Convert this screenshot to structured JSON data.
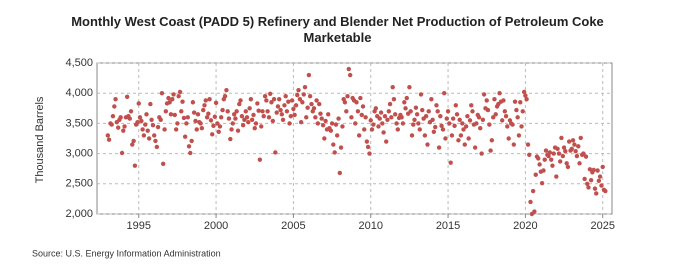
{
  "chart_data": {
    "type": "scatter",
    "title": "Monthly West Coast (PADD 5) Refinery and Blender Net Production of Petroleum Coke Marketable",
    "y_label": "Thousand Barrels",
    "source": "Source: U.S. Energy Information Administration",
    "color": "#c0504d",
    "grid": true,
    "xlim": [
      1992.3,
      2025.6
    ],
    "xticks": [
      1995,
      2000,
      2005,
      2010,
      2015,
      2020,
      2025
    ],
    "ylim": [
      2000,
      4500
    ],
    "yticks": [
      {
        "value": 2000,
        "label": "2,000"
      },
      {
        "value": 2500,
        "label": "2,500"
      },
      {
        "value": 3000,
        "label": "3,000"
      },
      {
        "value": 3500,
        "label": "3,500"
      },
      {
        "value": 4000,
        "label": "4,000"
      },
      {
        "value": 4500,
        "label": "4,500"
      }
    ],
    "x": [
      1993.0,
      1993.08,
      1993.17,
      1993.25,
      1993.33,
      1993.42,
      1993.5,
      1993.58,
      1993.67,
      1993.75,
      1993.83,
      1993.92,
      1994.0,
      1994.08,
      1994.17,
      1994.25,
      1994.33,
      1994.42,
      1994.5,
      1994.58,
      1994.67,
      1994.75,
      1994.83,
      1994.92,
      1995.0,
      1995.08,
      1995.17,
      1995.25,
      1995.33,
      1995.42,
      1995.5,
      1995.58,
      1995.67,
      1995.75,
      1995.83,
      1995.92,
      1996.0,
      1996.08,
      1996.17,
      1996.25,
      1996.33,
      1996.42,
      1996.5,
      1996.58,
      1996.67,
      1996.75,
      1996.83,
      1996.92,
      1997.0,
      1997.08,
      1997.17,
      1997.25,
      1997.33,
      1997.42,
      1997.5,
      1997.58,
      1997.67,
      1997.75,
      1997.83,
      1997.92,
      1998.0,
      1998.08,
      1998.17,
      1998.25,
      1998.33,
      1998.42,
      1998.5,
      1998.58,
      1998.67,
      1998.75,
      1998.83,
      1998.92,
      1999.0,
      1999.08,
      1999.17,
      1999.25,
      1999.33,
      1999.42,
      1999.5,
      1999.58,
      1999.67,
      1999.75,
      1999.83,
      1999.92,
      2000.0,
      2000.08,
      2000.17,
      2000.25,
      2000.33,
      2000.42,
      2000.5,
      2000.58,
      2000.67,
      2000.75,
      2000.83,
      2000.92,
      2001.0,
      2001.08,
      2001.17,
      2001.25,
      2001.33,
      2001.42,
      2001.5,
      2001.58,
      2001.67,
      2001.75,
      2001.83,
      2001.92,
      2002.0,
      2002.08,
      2002.17,
      2002.25,
      2002.33,
      2002.42,
      2002.5,
      2002.58,
      2002.67,
      2002.75,
      2002.83,
      2002.92,
      2003.0,
      2003.08,
      2003.17,
      2003.25,
      2003.33,
      2003.42,
      2003.5,
      2003.58,
      2003.67,
      2003.75,
      2003.83,
      2003.92,
      2004.0,
      2004.08,
      2004.17,
      2004.25,
      2004.33,
      2004.42,
      2004.5,
      2004.58,
      2004.67,
      2004.75,
      2004.83,
      2004.92,
      2005.0,
      2005.08,
      2005.17,
      2005.25,
      2005.33,
      2005.42,
      2005.5,
      2005.58,
      2005.67,
      2005.75,
      2005.83,
      2005.92,
      2006.0,
      2006.08,
      2006.17,
      2006.25,
      2006.33,
      2006.42,
      2006.5,
      2006.58,
      2006.67,
      2006.75,
      2006.83,
      2006.92,
      2007.0,
      2007.08,
      2007.17,
      2007.25,
      2007.33,
      2007.42,
      2007.5,
      2007.58,
      2007.67,
      2007.75,
      2007.83,
      2007.92,
      2008.0,
      2008.08,
      2008.17,
      2008.25,
      2008.33,
      2008.42,
      2008.5,
      2008.58,
      2008.67,
      2008.75,
      2008.83,
      2008.92,
      2009.0,
      2009.08,
      2009.17,
      2009.25,
      2009.33,
      2009.42,
      2009.5,
      2009.58,
      2009.67,
      2009.75,
      2009.83,
      2009.92,
      2010.0,
      2010.08,
      2010.17,
      2010.25,
      2010.33,
      2010.42,
      2010.5,
      2010.58,
      2010.67,
      2010.75,
      2010.83,
      2010.92,
      2011.0,
      2011.08,
      2011.17,
      2011.25,
      2011.33,
      2011.42,
      2011.5,
      2011.58,
      2011.67,
      2011.75,
      2011.83,
      2011.92,
      2012.0,
      2012.08,
      2012.17,
      2012.25,
      2012.33,
      2012.42,
      2012.5,
      2012.58,
      2012.67,
      2012.75,
      2012.83,
      2012.92,
      2013.0,
      2013.08,
      2013.17,
      2013.25,
      2013.33,
      2013.42,
      2013.5,
      2013.58,
      2013.67,
      2013.75,
      2013.83,
      2013.92,
      2014.0,
      2014.08,
      2014.17,
      2014.25,
      2014.33,
      2014.42,
      2014.5,
      2014.58,
      2014.67,
      2014.75,
      2014.83,
      2014.92,
      2015.0,
      2015.08,
      2015.17,
      2015.25,
      2015.33,
      2015.42,
      2015.5,
      2015.58,
      2015.67,
      2015.75,
      2015.83,
      2015.92,
      2016.0,
      2016.08,
      2016.17,
      2016.25,
      2016.33,
      2016.42,
      2016.5,
      2016.58,
      2016.67,
      2016.75,
      2016.83,
      2016.92,
      2017.0,
      2017.08,
      2017.17,
      2017.25,
      2017.33,
      2017.42,
      2017.5,
      2017.58,
      2017.67,
      2017.75,
      2017.83,
      2017.92,
      2018.0,
      2018.08,
      2018.17,
      2018.25,
      2018.33,
      2018.42,
      2018.5,
      2018.58,
      2018.67,
      2018.75,
      2018.83,
      2018.92,
      2019.0,
      2019.08,
      2019.17,
      2019.25,
      2019.33,
      2019.42,
      2019.5,
      2019.58,
      2019.67,
      2019.75,
      2019.83,
      2019.92,
      2020.0,
      2020.08,
      2020.17,
      2020.25,
      2020.33,
      2020.42,
      2020.5,
      2020.58,
      2020.67,
      2020.75,
      2020.83,
      2020.92,
      2021.0,
      2021.08,
      2021.17,
      2021.25,
      2021.33,
      2021.42,
      2021.5,
      2021.58,
      2021.67,
      2021.75,
      2021.83,
      2021.92,
      2022.0,
      2022.08,
      2022.17,
      2022.25,
      2022.33,
      2022.42,
      2022.5,
      2022.58,
      2022.67,
      2022.75,
      2022.83,
      2022.92,
      2023.0,
      2023.08,
      2023.17,
      2023.25,
      2023.33,
      2023.42,
      2023.5,
      2023.58,
      2023.67,
      2023.75,
      2023.83,
      2023.92,
      2024.0,
      2024.08,
      2024.17,
      2024.25,
      2024.33,
      2024.42,
      2024.5,
      2024.58,
      2024.67,
      2024.75,
      2024.83,
      2024.92,
      2025.0,
      2025.08,
      2025.17
    ],
    "values": [
      3300,
      3230,
      3500,
      3480,
      3620,
      3780,
      3900,
      3520,
      3430,
      3560,
      3600,
      3010,
      3380,
      3450,
      3600,
      3940,
      3620,
      3580,
      3700,
      3150,
      3210,
      2800,
      3480,
      3520,
      3830,
      3600,
      3540,
      3400,
      3300,
      3480,
      3650,
      3380,
      3250,
      3820,
      3560,
      3470,
      3300,
      3210,
      3110,
      3440,
      3600,
      3560,
      4000,
      2830,
      3400,
      3700,
      3830,
      3920,
      3850,
      3650,
      3900,
      3980,
      3640,
      3400,
      3500,
      3950,
      4020,
      3700,
      3860,
      3590,
      3280,
      3500,
      3600,
      3120,
      3010,
      3210,
      3850,
      3680,
      3540,
      3400,
      3650,
      3520,
      3500,
      3420,
      3720,
      3800,
      3880,
      3600,
      3660,
      3900,
      3550,
      3320,
      3460,
      3610,
      3840,
      3500,
      3360,
      3450,
      3600,
      3720,
      3900,
      3950,
      4050,
      3700,
      3580,
      3240,
      3400,
      3500,
      3650,
      3580,
      3700,
      3380,
      3820,
      3880,
      3620,
      3470,
      3560,
      3700,
      3600,
      3520,
      3750,
      3900,
      3560,
      3640,
      3420,
      3500,
      3830,
      3710,
      2900,
      3450,
      3700,
      3620,
      3950,
      3880,
      3700,
      3600,
      3990,
      3850,
      3540,
      3900,
      3020,
      3680,
      3780,
      3900,
      3720,
      3650,
      3560,
      3800,
      3950,
      3700,
      3860,
      3500,
      3620,
      3880,
      3740,
      3640,
      3800,
      3970,
      4050,
      3900,
      3520,
      3850,
      3980,
      4100,
      3600,
      3760,
      4300,
      3950,
      3820,
      3700,
      3750,
      3600,
      3880,
      3500,
      3820,
      3660,
      3580,
      3470,
      3250,
      3540,
      3400,
      3650,
      3420,
      3380,
      3500,
      3150,
      3020,
      3480,
      3300,
      3580,
      2680,
      3100,
      3450,
      3900,
      3850,
      3700,
      3950,
      4400,
      4300,
      3600,
      3920,
      3880,
      3500,
      3850,
      3700,
      3300,
      3920,
      3640,
      3780,
      3400,
      3600,
      3200,
      3110,
      3000,
      3550,
      3400,
      3480,
      3700,
      3750,
      3620,
      3450,
      3580,
      3680,
      3500,
      3350,
      3620,
      3200,
      3560,
      3700,
      3820,
      3600,
      4100,
      3900,
      3650,
      3500,
      3400,
      3590,
      3640,
      3600,
      3500,
      3850,
      3750,
      3920,
      3660,
      4100,
      3700,
      3300,
      3480,
      3560,
      3760,
      3650,
      3500,
      3400,
      3980,
      3720,
      3580,
      3300,
      3620,
      3150,
      3700,
      3520,
      3900,
      3560,
      3360,
      3440,
      3800,
      3700,
      3100,
      3620,
      3460,
      3400,
      4000,
      3250,
      3580,
      3700,
      3500,
      2850,
      3300,
      3580,
      3460,
      3800,
      3650,
      3220,
      3560,
      3300,
      3500,
      3400,
      3150,
      3450,
      3620,
      3250,
      3550,
      3800,
      3700,
      3480,
      3100,
      3500,
      3640,
      3600,
      3420,
      3000,
      3560,
      3980,
      3750,
      3880,
      3720,
      3480,
      3050,
      3220,
      3600,
      3900,
      3650,
      3780,
      3820,
      4000,
      3860,
      3550,
      3880,
      3700,
      3620,
      3450,
      3250,
      3550,
      3500,
      3480,
      3150,
      3860,
      3720,
      3600,
      3300,
      3850,
      3450,
      3700,
      4020,
      3960,
      3900,
      3150,
      2980,
      2200,
      2000,
      2380,
      2040,
      2650,
      2950,
      2920,
      2820,
      2700,
      2510,
      2720,
      2900,
      3050,
      2980,
      2960,
      3020,
      2900,
      2800,
      3000,
      3100,
      2620,
      3080,
      3000,
      2870,
      3260,
      2960,
      3100,
      3040,
      2840,
      2780,
      3200,
      3050,
      3080,
      3220,
      3150,
      3040,
      2960,
      3120,
      2840,
      3260,
      2980,
      3000,
      2580,
      2950,
      2500,
      2440,
      2740,
      2560,
      2690,
      2730,
      2420,
      2340,
      2720,
      2550,
      2620,
      2470,
      2780,
      2400,
      2380
    ]
  }
}
